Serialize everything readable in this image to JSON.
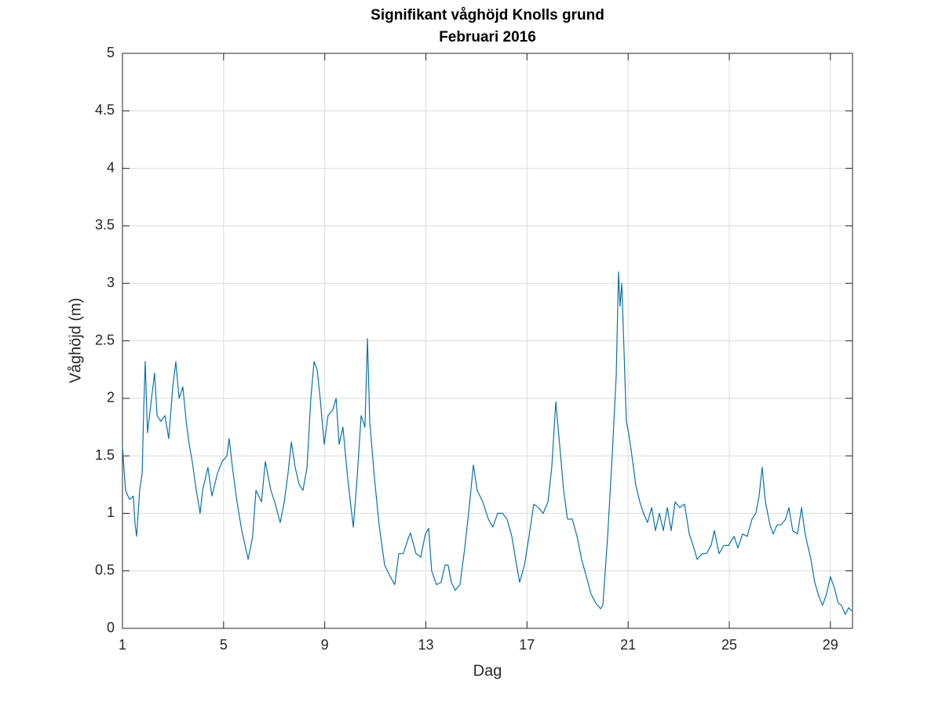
{
  "chart_data": {
    "type": "line",
    "title": "Signifikant våghöjd Knolls grund",
    "subtitle": "Februari 2016",
    "x_label": "Dag",
    "y_label": "Våghöjd (m)",
    "xlim": [
      1,
      29.875
    ],
    "ylim": [
      0,
      5
    ],
    "xticks": [
      1,
      5,
      9,
      13,
      17,
      21,
      25,
      29
    ],
    "yticks": [
      0,
      0.5,
      1,
      1.5,
      2,
      2.5,
      3,
      3.5,
      4,
      4.5,
      5
    ],
    "grid": true,
    "series": [
      {
        "name": "Våghöjd",
        "color": "#0a72a8",
        "x": [
          1.0,
          1.12,
          1.28,
          1.43,
          1.5,
          1.56,
          1.68,
          1.78,
          1.84,
          1.9,
          1.99,
          2.15,
          2.27,
          2.37,
          2.52,
          2.68,
          2.83,
          2.99,
          3.11,
          3.24,
          3.39,
          3.52,
          3.64,
          3.76,
          3.92,
          4.07,
          4.17,
          4.38,
          4.54,
          4.76,
          4.94,
          5.13,
          5.22,
          5.35,
          5.53,
          5.72,
          5.97,
          6.15,
          6.28,
          6.5,
          6.65,
          6.87,
          7.02,
          7.24,
          7.4,
          7.55,
          7.68,
          7.83,
          7.99,
          8.14,
          8.3,
          8.45,
          8.58,
          8.7,
          8.82,
          8.98,
          9.13,
          9.32,
          9.45,
          9.57,
          9.72,
          9.91,
          10.13,
          10.28,
          10.44,
          10.59,
          10.69,
          10.78,
          10.97,
          11.15,
          11.37,
          11.59,
          11.77,
          11.93,
          12.11,
          12.3,
          12.39,
          12.61,
          12.8,
          12.98,
          13.11,
          13.23,
          13.42,
          13.6,
          13.76,
          13.88,
          14.01,
          14.16,
          14.35,
          14.54,
          14.69,
          14.88,
          15.03,
          15.25,
          15.47,
          15.65,
          15.84,
          16.03,
          16.21,
          16.4,
          16.55,
          16.71,
          16.9,
          17.08,
          17.27,
          17.45,
          17.64,
          17.83,
          17.98,
          18.14,
          18.29,
          18.45,
          18.6,
          18.79,
          18.98,
          19.16,
          19.35,
          19.53,
          19.72,
          19.91,
          20.0,
          20.19,
          20.37,
          20.53,
          20.62,
          20.68,
          20.75,
          20.84,
          20.93,
          21.02,
          21.15,
          21.3,
          21.46,
          21.61,
          21.77,
          21.93,
          22.08,
          22.24,
          22.39,
          22.55,
          22.7,
          22.86,
          23.04,
          23.23,
          23.42,
          23.6,
          23.73,
          23.94,
          24.1,
          24.28,
          24.41,
          24.6,
          24.78,
          24.97,
          25.19,
          25.34,
          25.53,
          25.71,
          25.9,
          26.05,
          26.18,
          26.3,
          26.43,
          26.61,
          26.74,
          26.89,
          27.05,
          27.23,
          27.36,
          27.51,
          27.7,
          27.86,
          27.98,
          28.07,
          28.23,
          28.38,
          28.54,
          28.69,
          28.85,
          29.0,
          29.16,
          29.31,
          29.44,
          29.59,
          29.72,
          29.84
        ],
        "values": [
          1.58,
          1.2,
          1.12,
          1.15,
          0.9,
          0.8,
          1.2,
          1.35,
          1.9,
          2.32,
          1.7,
          2.0,
          2.22,
          1.85,
          1.8,
          1.85,
          1.65,
          2.1,
          2.32,
          2.0,
          2.1,
          1.8,
          1.6,
          1.45,
          1.2,
          1.0,
          1.2,
          1.4,
          1.15,
          1.35,
          1.45,
          1.5,
          1.65,
          1.4,
          1.1,
          0.85,
          0.6,
          0.8,
          1.2,
          1.1,
          1.45,
          1.2,
          1.1,
          0.92,
          1.1,
          1.35,
          1.62,
          1.4,
          1.25,
          1.2,
          1.4,
          2.0,
          2.32,
          2.25,
          2.0,
          1.6,
          1.85,
          1.9,
          2.0,
          1.6,
          1.75,
          1.3,
          0.88,
          1.3,
          1.85,
          1.75,
          2.52,
          1.8,
          1.3,
          0.9,
          0.55,
          0.45,
          0.38,
          0.65,
          0.65,
          0.78,
          0.83,
          0.65,
          0.62,
          0.82,
          0.87,
          0.5,
          0.38,
          0.4,
          0.55,
          0.55,
          0.4,
          0.33,
          0.38,
          0.7,
          1.0,
          1.42,
          1.2,
          1.1,
          0.95,
          0.88,
          1.0,
          1.0,
          0.95,
          0.8,
          0.6,
          0.4,
          0.55,
          0.8,
          1.08,
          1.05,
          1.0,
          1.1,
          1.4,
          1.97,
          1.6,
          1.2,
          0.95,
          0.95,
          0.8,
          0.6,
          0.45,
          0.3,
          0.22,
          0.17,
          0.2,
          0.8,
          1.5,
          2.2,
          3.1,
          2.8,
          3.0,
          2.4,
          1.8,
          1.7,
          1.5,
          1.25,
          1.1,
          1.0,
          0.92,
          1.05,
          0.85,
          1.0,
          0.85,
          1.05,
          0.85,
          1.1,
          1.05,
          1.08,
          0.82,
          0.7,
          0.6,
          0.65,
          0.65,
          0.72,
          0.85,
          0.65,
          0.72,
          0.72,
          0.8,
          0.7,
          0.82,
          0.8,
          0.95,
          1.0,
          1.15,
          1.4,
          1.1,
          0.9,
          0.82,
          0.9,
          0.9,
          0.95,
          1.05,
          0.85,
          0.82,
          1.05,
          0.85,
          0.75,
          0.6,
          0.4,
          0.28,
          0.2,
          0.3,
          0.45,
          0.35,
          0.22,
          0.2,
          0.12,
          0.18,
          0.15
        ]
      }
    ]
  }
}
